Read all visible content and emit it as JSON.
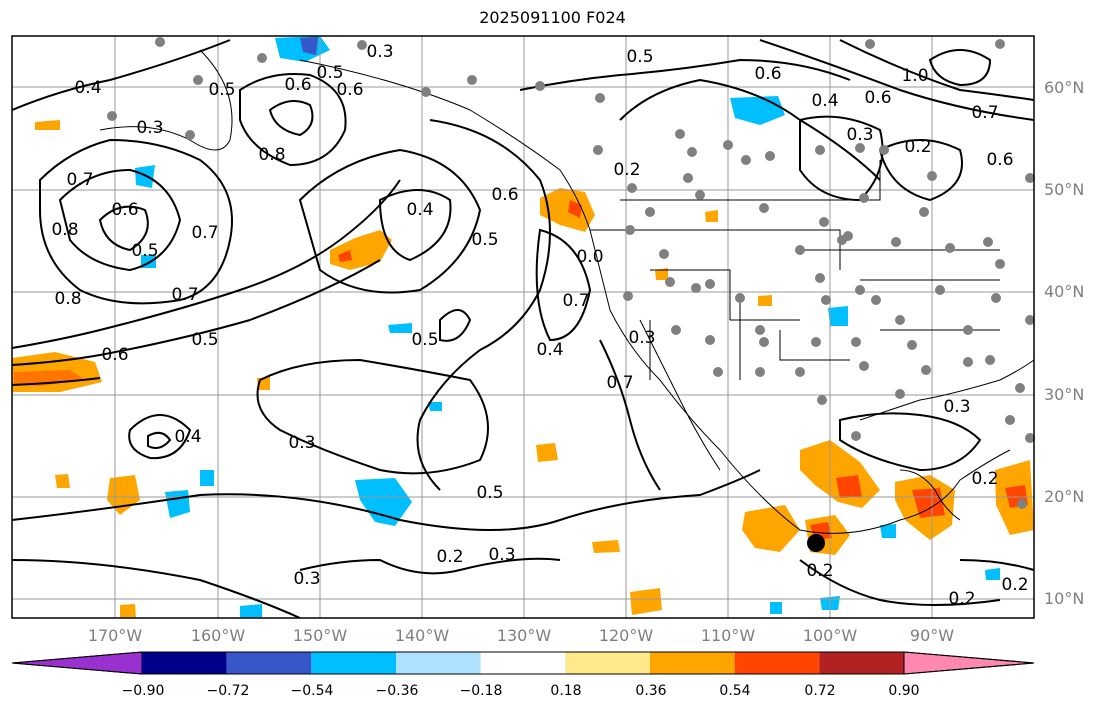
{
  "title": "2025091100 F024",
  "lat_labels": [
    "60°N",
    "50°N",
    "40°N",
    "30°N",
    "20°N",
    "10°N"
  ],
  "lon_labels": [
    "170°W",
    "160°W",
    "150°W",
    "140°W",
    "130°W",
    "120°W",
    "110°W",
    "100°W",
    "90°W"
  ],
  "colorbar": {
    "colors": [
      "#9b30d0",
      "#00008b",
      "#3757c8",
      "#00bfff",
      "#aee2ff",
      "#ffffff",
      "#ffe98a",
      "#ffa500",
      "#ff4500",
      "#b22222",
      "#ff88b0"
    ],
    "labels": [
      "−0.90",
      "−0.72",
      "−0.54",
      "−0.36",
      "−0.18",
      "0.18",
      "0.36",
      "0.54",
      "0.72",
      "0.90"
    ]
  },
  "contour_labels": [
    "0.4",
    "0.3",
    "0.5",
    "0.6",
    "0.7",
    "0.8",
    "0.5",
    "0.6",
    "0.7",
    "0.8",
    "0.6",
    "0.5",
    "0.7",
    "0.8",
    "0.6",
    "0.5",
    "0.4",
    "0.5",
    "0.6",
    "0.5",
    "0.4",
    "0.3",
    "0.4",
    "0.3",
    "0.5",
    "0.2",
    "0.3",
    "0.3",
    "0.2",
    "0.2",
    "0.3",
    "0.4",
    "0.5",
    "0.6",
    "0.7",
    "1.0",
    "0.3",
    "0.2",
    "0.6",
    "0.7",
    "0.3",
    "0.2",
    "0.2",
    "0.2",
    "0.0",
    "0.7",
    "0.6"
  ]
}
